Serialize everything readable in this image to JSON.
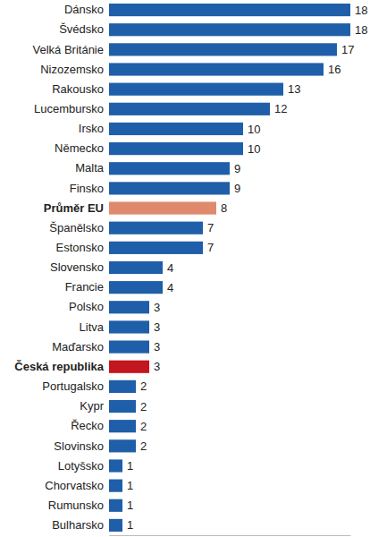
{
  "chart_data": {
    "type": "bar",
    "orientation": "horizontal",
    "categories": [
      "Dánsko",
      "Švédsko",
      "Velká Británie",
      "Nizozemsko",
      "Rakousko",
      "Lucembursko",
      "Irsko",
      "Německo",
      "Malta",
      "Finsko",
      "Průměr EU",
      "Španělsko",
      "Estonsko",
      "Slovensko",
      "Francie",
      "Polsko",
      "Litva",
      "Maďarsko",
      "Česká republika",
      "Portugalsko",
      "Kypr",
      "Řecko",
      "Slovinsko",
      "Lotyšsko",
      "Chorvatsko",
      "Rumunsko",
      "Bulharsko"
    ],
    "values": [
      18,
      18,
      17,
      16,
      13,
      12,
      10,
      10,
      9,
      9,
      8,
      7,
      7,
      4,
      4,
      3,
      3,
      3,
      3,
      2,
      2,
      2,
      2,
      1,
      1,
      1,
      1
    ],
    "colors": [
      "#1f5fa9",
      "#1f5fa9",
      "#1f5fa9",
      "#1f5fa9",
      "#1f5fa9",
      "#1f5fa9",
      "#1f5fa9",
      "#1f5fa9",
      "#1f5fa9",
      "#1f5fa9",
      "#e08a6d",
      "#1f5fa9",
      "#1f5fa9",
      "#1f5fa9",
      "#1f5fa9",
      "#1f5fa9",
      "#1f5fa9",
      "#1f5fa9",
      "#c3161f",
      "#1f5fa9",
      "#1f5fa9",
      "#1f5fa9",
      "#1f5fa9",
      "#1f5fa9",
      "#1f5fa9",
      "#1f5fa9",
      "#1f5fa9"
    ],
    "xlim": [
      0,
      18
    ],
    "xticks": [],
    "data_labels": true,
    "tick_labels": "y"
  }
}
